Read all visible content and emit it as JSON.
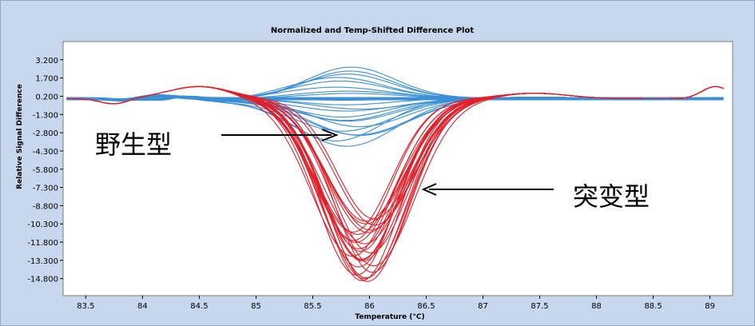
{
  "chart_data": {
    "type": "line",
    "title": "Normalized and Temp-Shifted Difference Plot",
    "xlabel": "Temperature (°C)",
    "ylabel": "Relative Signal Difference",
    "xlim": [
      83.3,
      89.2
    ],
    "ylim": [
      -16.2,
      4.7
    ],
    "x_ticks": [
      "83.5",
      "84",
      "84.5",
      "85",
      "85.5",
      "86",
      "86.5",
      "87",
      "87.5",
      "88",
      "88.5",
      "89"
    ],
    "y_ticks": [
      "3.200",
      "1.700",
      "0.200",
      "-1.300",
      "-2.800",
      "-4.300",
      "-5.800",
      "-7.300",
      "-8.800",
      "-10.300",
      "-11.800",
      "-13.300",
      "-14.800"
    ],
    "series": [
      {
        "name": "野生型",
        "color": "#3a8fd6",
        "curve_count": 22,
        "peak_temp_range": [
          85.7,
          85.95
        ],
        "peak_amplitude_range": [
          -3.8,
          2.6
        ]
      },
      {
        "name": "突变型",
        "color": "#e0202a",
        "curve_count": 26,
        "trough_temp_range": [
          85.85,
          86.05
        ],
        "trough_amplitude_range": [
          -15.2,
          -9.8
        ]
      }
    ],
    "annotations": [
      {
        "label": "野生型",
        "points_to": "wild-type curves"
      },
      {
        "label": "突变型",
        "points_to": "mutant curves"
      }
    ]
  }
}
